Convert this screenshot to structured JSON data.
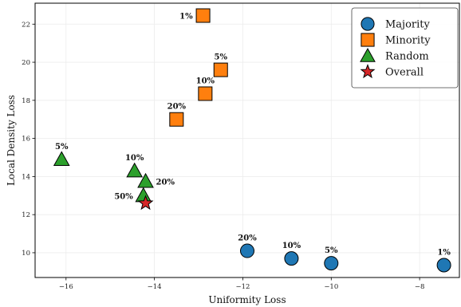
{
  "chart_data": {
    "type": "scatter",
    "title": "",
    "xlabel": "Uniformity Loss",
    "ylabel": "Local Density Loss",
    "xlim": [
      -16.7,
      -7.1
    ],
    "ylim": [
      8.7,
      23.1
    ],
    "xticks": [
      -16,
      -14,
      -12,
      -10,
      -8
    ],
    "xtick_labels": [
      "−16",
      "−14",
      "−12",
      "−10",
      "−8"
    ],
    "yticks": [
      10,
      12,
      14,
      16,
      18,
      20,
      22
    ],
    "ytick_labels": [
      "10",
      "12",
      "14",
      "16",
      "18",
      "20",
      "22"
    ],
    "grid": true,
    "legend_position": "top-right",
    "series": [
      {
        "name": "Majority",
        "marker": "circle",
        "color": "#1f77b4",
        "points": [
          {
            "x": -11.9,
            "y": 10.1,
            "label": "20%",
            "label_pos": "above"
          },
          {
            "x": -10.9,
            "y": 9.7,
            "label": "10%",
            "label_pos": "above"
          },
          {
            "x": -10.0,
            "y": 9.45,
            "label": "5%",
            "label_pos": "above"
          },
          {
            "x": -7.45,
            "y": 9.35,
            "label": "1%",
            "label_pos": "above"
          }
        ]
      },
      {
        "name": "Minority",
        "marker": "square",
        "color": "#ff7f0e",
        "points": [
          {
            "x": -12.9,
            "y": 22.45,
            "label": "1%",
            "label_pos": "left"
          },
          {
            "x": -12.5,
            "y": 19.6,
            "label": "5%",
            "label_pos": "above"
          },
          {
            "x": -12.85,
            "y": 18.35,
            "label": "10%",
            "label_pos": "above"
          },
          {
            "x": -13.5,
            "y": 17.0,
            "label": "20%",
            "label_pos": "above"
          }
        ]
      },
      {
        "name": "Random",
        "marker": "triangle",
        "color": "#2ca02c",
        "points": [
          {
            "x": -16.1,
            "y": 14.9,
            "label": "5%",
            "label_pos": "above"
          },
          {
            "x": -14.45,
            "y": 14.3,
            "label": "10%",
            "label_pos": "above"
          },
          {
            "x": -14.2,
            "y": 13.75,
            "label": "20%",
            "label_pos": "right"
          },
          {
            "x": -14.25,
            "y": 13.0,
            "label": "50%",
            "label_pos": "left"
          }
        ]
      },
      {
        "name": "Overall",
        "marker": "star",
        "color": "#d62728",
        "points": [
          {
            "x": -14.2,
            "y": 12.6,
            "label": "",
            "label_pos": "none"
          }
        ]
      }
    ]
  }
}
